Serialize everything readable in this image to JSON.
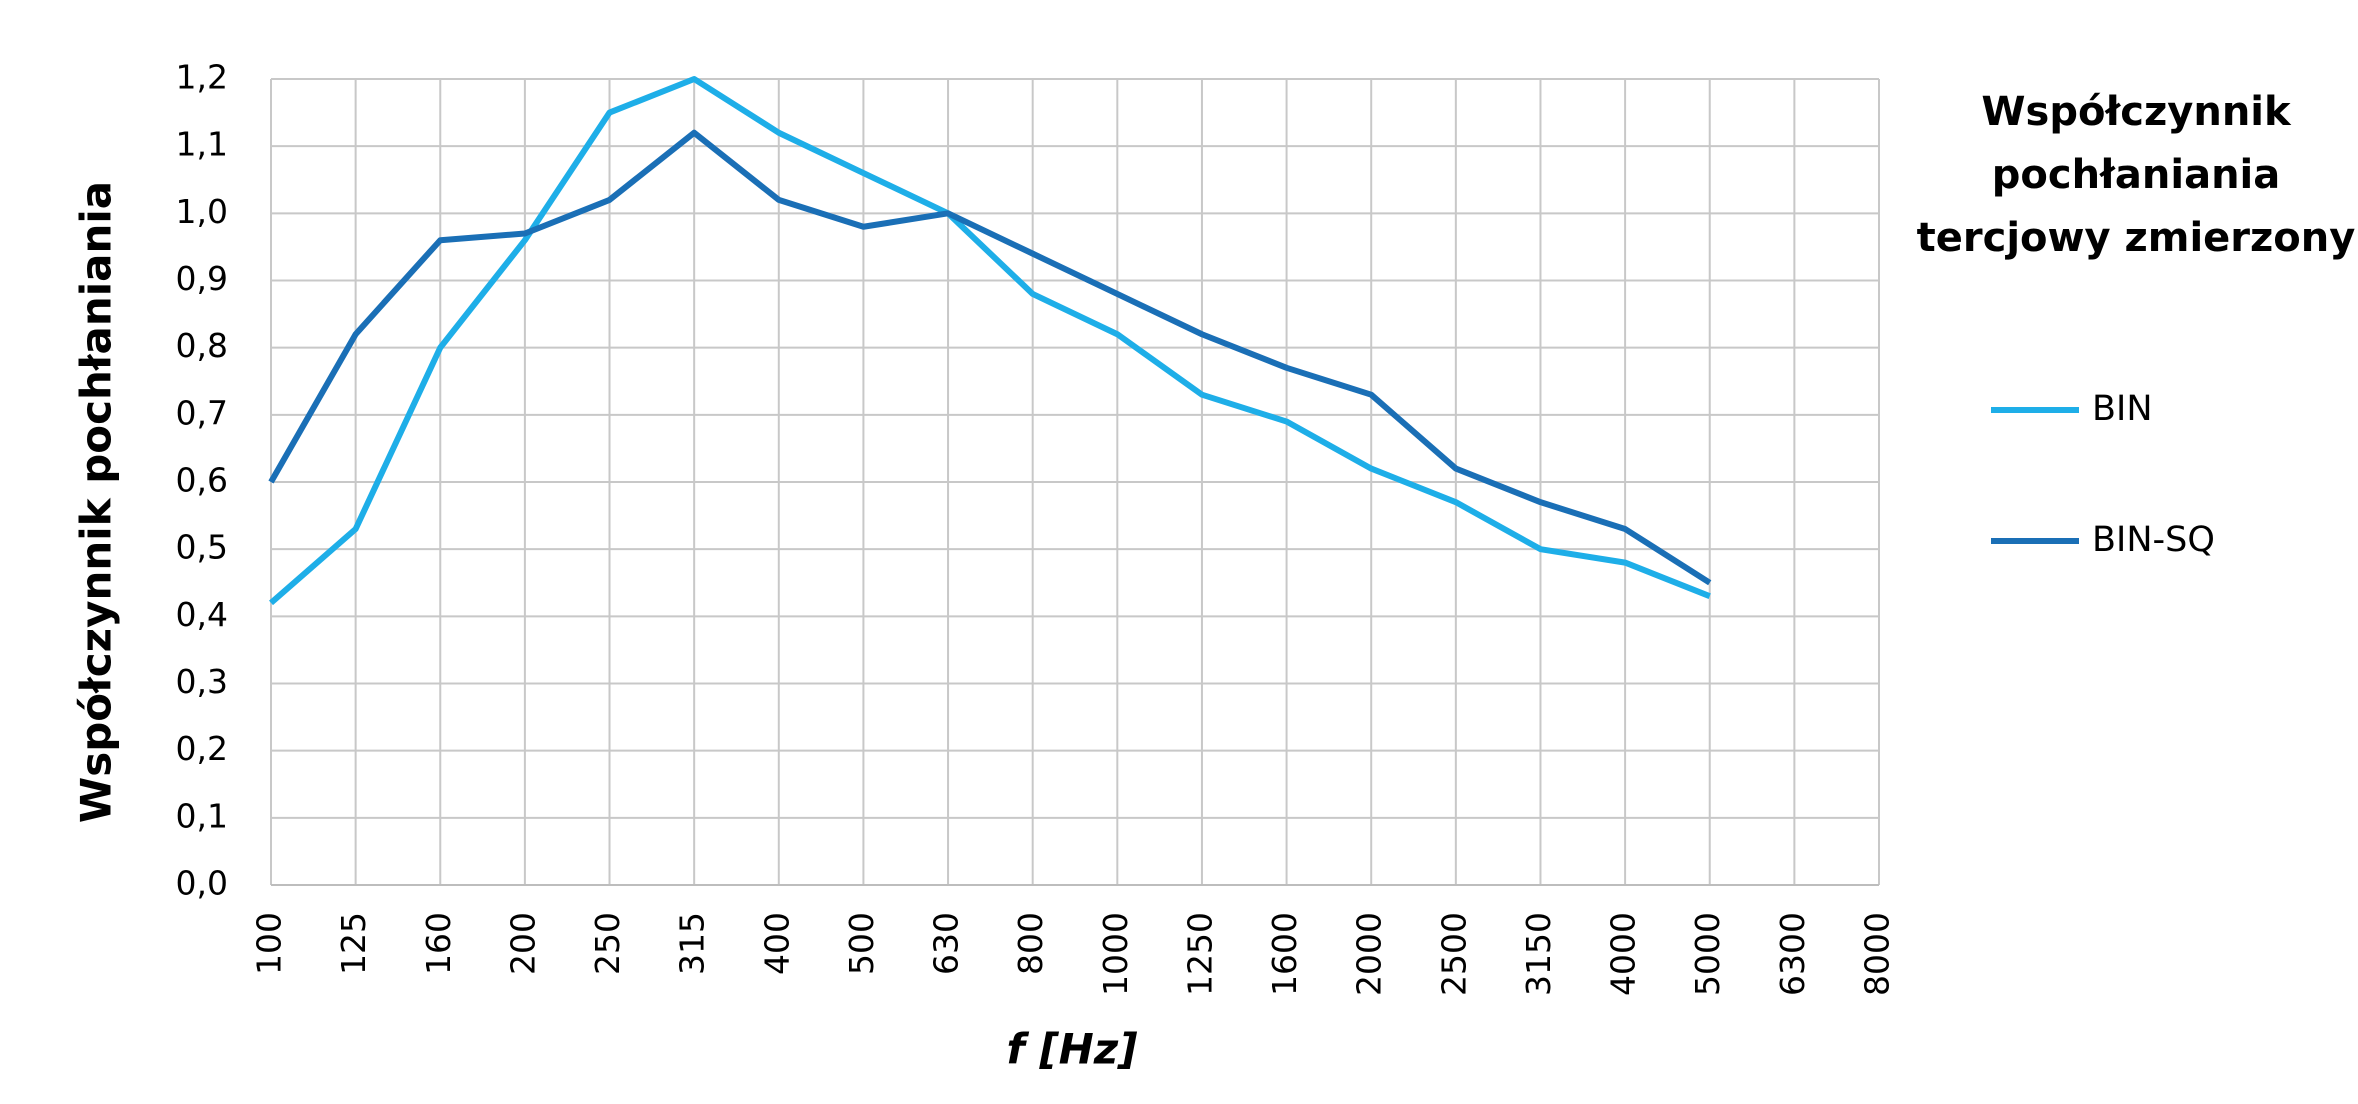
{
  "chart_data": {
    "type": "line",
    "y_label": "Współczynnik pochłaniania",
    "x_label": "f [Hz]",
    "legend_title": [
      "Współczynnik",
      "pochłaniania",
      "tercjowy zmierzony"
    ],
    "categories": [
      "100",
      "125",
      "160",
      "200",
      "250",
      "315",
      "400",
      "500",
      "630",
      "800",
      "1000",
      "1250",
      "1600",
      "2000",
      "2500",
      "3150",
      "4000",
      "5000",
      "6300",
      "8000"
    ],
    "series": [
      {
        "name": "BIN",
        "color": "#1eaee8",
        "values": [
          0.42,
          0.53,
          0.8,
          0.96,
          1.15,
          1.2,
          1.12,
          1.06,
          1.0,
          0.88,
          0.82,
          0.73,
          0.69,
          0.62,
          0.57,
          0.5,
          0.48,
          0.43,
          null,
          null
        ]
      },
      {
        "name": "BIN-SQ",
        "color": "#1a6fb6",
        "values": [
          0.6,
          0.82,
          0.96,
          0.97,
          1.02,
          1.12,
          1.02,
          0.98,
          1.0,
          0.94,
          0.88,
          0.82,
          0.77,
          0.73,
          0.62,
          0.57,
          0.53,
          0.45,
          null,
          null
        ]
      }
    ],
    "ylim": [
      0,
      1.2
    ],
    "yticks": [
      {
        "value": 0,
        "label": "0,0"
      },
      {
        "value": 0.1,
        "label": "0,1"
      },
      {
        "value": 0.2,
        "label": "0,2"
      },
      {
        "value": 0.3,
        "label": "0,3"
      },
      {
        "value": 0.4,
        "label": "0,4"
      },
      {
        "value": 0.5,
        "label": "0,5"
      },
      {
        "value": 0.6,
        "label": "0,6"
      },
      {
        "value": 0.7,
        "label": "0,7"
      },
      {
        "value": 0.8,
        "label": "0,8"
      },
      {
        "value": 0.9,
        "label": "0,9"
      },
      {
        "value": 1.0,
        "label": "1,0"
      },
      {
        "value": 1.1,
        "label": "1,1"
      },
      {
        "value": 1.2,
        "label": "1,2"
      }
    ],
    "grid": true
  }
}
